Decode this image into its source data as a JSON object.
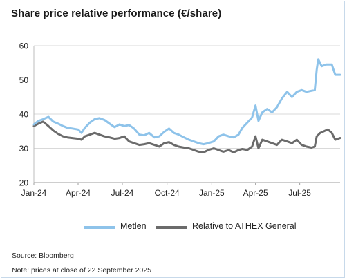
{
  "title": "Share price relative performance (€/share)",
  "chart_data": {
    "type": "line",
    "title": "Share price relative performance (€/share)",
    "xlabel": "",
    "ylabel": "",
    "x_ticks": [
      "Jan-24",
      "Apr-24",
      "Jul-24",
      "Oct-24",
      "Jan-25",
      "Apr-25",
      "Jul-25"
    ],
    "x_tick_dates": [
      "2024-01-01",
      "2024-04-01",
      "2024-07-01",
      "2024-10-01",
      "2025-01-01",
      "2025-04-01",
      "2025-07-01"
    ],
    "x_range": [
      "2024-01-01",
      "2025-09-22"
    ],
    "ylim": [
      20,
      60
    ],
    "y_ticks": [
      20,
      30,
      40,
      50,
      60
    ],
    "grid": "horizontal",
    "legend_position": "bottom",
    "series": [
      {
        "name": "Metlen",
        "color": "#8ec3ea",
        "points": [
          [
            "2024-01-01",
            37.0
          ],
          [
            "2024-01-10",
            38.0
          ],
          [
            "2024-01-20",
            38.5
          ],
          [
            "2024-01-31",
            39.2
          ],
          [
            "2024-02-10",
            37.8
          ],
          [
            "2024-02-20",
            37.2
          ],
          [
            "2024-03-01",
            36.5
          ],
          [
            "2024-03-10",
            36.0
          ],
          [
            "2024-03-20",
            35.8
          ],
          [
            "2024-04-01",
            35.5
          ],
          [
            "2024-04-08",
            34.5
          ],
          [
            "2024-04-15",
            36.0
          ],
          [
            "2024-04-25",
            37.5
          ],
          [
            "2024-05-05",
            38.5
          ],
          [
            "2024-05-15",
            38.8
          ],
          [
            "2024-05-25",
            38.3
          ],
          [
            "2024-06-05",
            37.2
          ],
          [
            "2024-06-15",
            36.2
          ],
          [
            "2024-06-25",
            37.0
          ],
          [
            "2024-07-05",
            36.5
          ],
          [
            "2024-07-15",
            36.8
          ],
          [
            "2024-07-25",
            35.8
          ],
          [
            "2024-08-05",
            34.0
          ],
          [
            "2024-08-15",
            33.8
          ],
          [
            "2024-08-25",
            34.5
          ],
          [
            "2024-09-05",
            33.2
          ],
          [
            "2024-09-15",
            33.5
          ],
          [
            "2024-09-25",
            34.8
          ],
          [
            "2024-10-05",
            35.8
          ],
          [
            "2024-10-15",
            34.5
          ],
          [
            "2024-10-25",
            34.0
          ],
          [
            "2024-11-05",
            33.2
          ],
          [
            "2024-11-15",
            32.5
          ],
          [
            "2024-11-25",
            32.0
          ],
          [
            "2024-12-05",
            31.5
          ],
          [
            "2024-12-15",
            31.2
          ],
          [
            "2024-12-25",
            31.5
          ],
          [
            "2025-01-05",
            32.0
          ],
          [
            "2025-01-15",
            33.5
          ],
          [
            "2025-01-25",
            34.0
          ],
          [
            "2025-02-05",
            33.5
          ],
          [
            "2025-02-15",
            33.2
          ],
          [
            "2025-02-25",
            34.0
          ],
          [
            "2025-03-05",
            36.0
          ],
          [
            "2025-03-15",
            37.5
          ],
          [
            "2025-03-25",
            39.0
          ],
          [
            "2025-04-01",
            42.5
          ],
          [
            "2025-04-07",
            38.0
          ],
          [
            "2025-04-15",
            40.5
          ],
          [
            "2025-04-25",
            41.5
          ],
          [
            "2025-05-05",
            40.5
          ],
          [
            "2025-05-15",
            42.0
          ],
          [
            "2025-05-25",
            44.5
          ],
          [
            "2025-06-05",
            46.5
          ],
          [
            "2025-06-15",
            45.0
          ],
          [
            "2025-06-25",
            46.5
          ],
          [
            "2025-07-05",
            47.0
          ],
          [
            "2025-07-15",
            46.5
          ],
          [
            "2025-07-25",
            46.8
          ],
          [
            "2025-08-01",
            47.0
          ],
          [
            "2025-08-05",
            53.0
          ],
          [
            "2025-08-08",
            56.0
          ],
          [
            "2025-08-15",
            54.0
          ],
          [
            "2025-08-25",
            54.5
          ],
          [
            "2025-09-05",
            54.5
          ],
          [
            "2025-09-12",
            51.5
          ],
          [
            "2025-09-22",
            51.5
          ]
        ]
      },
      {
        "name": "Relative to ATHEX General",
        "color": "#6b6b6b",
        "points": [
          [
            "2024-01-01",
            36.5
          ],
          [
            "2024-01-10",
            37.2
          ],
          [
            "2024-01-20",
            37.8
          ],
          [
            "2024-01-31",
            36.5
          ],
          [
            "2024-02-10",
            35.2
          ],
          [
            "2024-02-20",
            34.2
          ],
          [
            "2024-03-01",
            33.5
          ],
          [
            "2024-03-10",
            33.2
          ],
          [
            "2024-03-20",
            33.0
          ],
          [
            "2024-04-01",
            32.8
          ],
          [
            "2024-04-08",
            32.5
          ],
          [
            "2024-04-15",
            33.5
          ],
          [
            "2024-04-25",
            34.0
          ],
          [
            "2024-05-05",
            34.5
          ],
          [
            "2024-05-15",
            34.0
          ],
          [
            "2024-05-25",
            33.5
          ],
          [
            "2024-06-05",
            33.2
          ],
          [
            "2024-06-15",
            32.8
          ],
          [
            "2024-06-25",
            33.0
          ],
          [
            "2024-07-05",
            33.5
          ],
          [
            "2024-07-15",
            32.0
          ],
          [
            "2024-07-25",
            31.5
          ],
          [
            "2024-08-05",
            31.0
          ],
          [
            "2024-08-15",
            31.2
          ],
          [
            "2024-08-25",
            31.5
          ],
          [
            "2024-09-05",
            31.0
          ],
          [
            "2024-09-15",
            30.5
          ],
          [
            "2024-09-25",
            31.5
          ],
          [
            "2024-10-05",
            31.8
          ],
          [
            "2024-10-15",
            31.0
          ],
          [
            "2024-10-25",
            30.5
          ],
          [
            "2024-11-05",
            30.2
          ],
          [
            "2024-11-15",
            30.0
          ],
          [
            "2024-11-25",
            29.5
          ],
          [
            "2024-12-05",
            29.0
          ],
          [
            "2024-12-15",
            28.8
          ],
          [
            "2024-12-25",
            29.5
          ],
          [
            "2025-01-05",
            30.0
          ],
          [
            "2025-01-15",
            29.5
          ],
          [
            "2025-01-25",
            29.0
          ],
          [
            "2025-02-05",
            29.5
          ],
          [
            "2025-02-15",
            28.8
          ],
          [
            "2025-02-25",
            29.5
          ],
          [
            "2025-03-05",
            29.8
          ],
          [
            "2025-03-15",
            29.5
          ],
          [
            "2025-03-25",
            30.5
          ],
          [
            "2025-04-01",
            33.5
          ],
          [
            "2025-04-07",
            30.0
          ],
          [
            "2025-04-15",
            32.5
          ],
          [
            "2025-04-25",
            32.0
          ],
          [
            "2025-05-05",
            31.5
          ],
          [
            "2025-05-15",
            31.0
          ],
          [
            "2025-05-25",
            32.5
          ],
          [
            "2025-06-05",
            32.0
          ],
          [
            "2025-06-15",
            31.5
          ],
          [
            "2025-06-25",
            32.5
          ],
          [
            "2025-07-05",
            31.0
          ],
          [
            "2025-07-15",
            30.5
          ],
          [
            "2025-07-25",
            30.2
          ],
          [
            "2025-08-01",
            30.5
          ],
          [
            "2025-08-05",
            33.5
          ],
          [
            "2025-08-12",
            34.5
          ],
          [
            "2025-08-20",
            35.0
          ],
          [
            "2025-08-28",
            35.5
          ],
          [
            "2025-09-05",
            34.5
          ],
          [
            "2025-09-12",
            32.5
          ],
          [
            "2025-09-22",
            33.0
          ]
        ]
      }
    ]
  },
  "legend": {
    "items": [
      {
        "label": "Metlen",
        "color": "#8ec3ea"
      },
      {
        "label": "Relative to ATHEX General",
        "color": "#6b6b6b"
      }
    ]
  },
  "footer": {
    "source": "Source: Bloomberg",
    "note": "Note: prices at close of 22 September 2025"
  }
}
